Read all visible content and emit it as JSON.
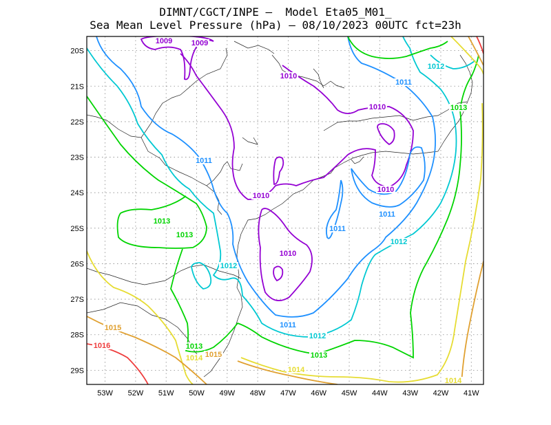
{
  "title": {
    "line1": "DIMNT/CGCT/INPE –  Model Eta05_M01_",
    "line2": "Sea Mean Level Pressure (hPa) – 08/10/2023 00UTC fct=23h"
  },
  "axes": {
    "lat_labels": [
      "20S",
      "21S",
      "22S",
      "23S",
      "24S",
      "25S",
      "26S",
      "27S",
      "28S",
      "29S"
    ],
    "lon_labels": [
      "53W",
      "52W",
      "51W",
      "50W",
      "49W",
      "48W",
      "47W",
      "46W",
      "45W",
      "44W",
      "43W",
      "42W",
      "41W"
    ],
    "lat_range": [
      -29.4,
      -19.6
    ],
    "lon_range": [
      -53.6,
      -40.6
    ],
    "grid": "dotted"
  },
  "contours": [
    {
      "value": "1009",
      "color": "#9400d3"
    },
    {
      "value": "1010",
      "color": "#9400d3"
    },
    {
      "value": "1011",
      "color": "#1e90ff"
    },
    {
      "value": "1012",
      "color": "#00c8d2"
    },
    {
      "value": "1013",
      "color": "#00d400"
    },
    {
      "value": "1014",
      "color": "#e6dc32"
    },
    {
      "value": "1015",
      "color": "#e0a030"
    },
    {
      "value": "1016",
      "color": "#ee3c3c"
    }
  ],
  "contour_labels": [
    {
      "text": "1009",
      "level": "1009"
    },
    {
      "text": "1009",
      "level": "1009"
    },
    {
      "text": "1010",
      "level": "1010"
    },
    {
      "text": "1010",
      "level": "1010"
    },
    {
      "text": "1010",
      "level": "1010"
    },
    {
      "text": "1010",
      "level": "1010"
    },
    {
      "text": "1010",
      "level": "1010"
    },
    {
      "text": "1011",
      "level": "1011"
    },
    {
      "text": "1011",
      "level": "1011"
    },
    {
      "text": "1011",
      "level": "1011"
    },
    {
      "text": "1011",
      "level": "1011"
    },
    {
      "text": "1011",
      "level": "1011"
    },
    {
      "text": "1012",
      "level": "1012"
    },
    {
      "text": "1012",
      "level": "1012"
    },
    {
      "text": "1012",
      "level": "1012"
    },
    {
      "text": "1012",
      "level": "1012"
    },
    {
      "text": "1013",
      "level": "1013"
    },
    {
      "text": "1013",
      "level": "1013"
    },
    {
      "text": "1013",
      "level": "1013"
    },
    {
      "text": "1013",
      "level": "1013"
    },
    {
      "text": "1013",
      "level": "1013"
    },
    {
      "text": "1014",
      "level": "1014"
    },
    {
      "text": "1014",
      "level": "1014"
    },
    {
      "text": "1014",
      "level": "1014"
    },
    {
      "text": "1015",
      "level": "1015"
    },
    {
      "text": "1015",
      "level": "1015"
    },
    {
      "text": "1016",
      "level": "1016"
    }
  ]
}
